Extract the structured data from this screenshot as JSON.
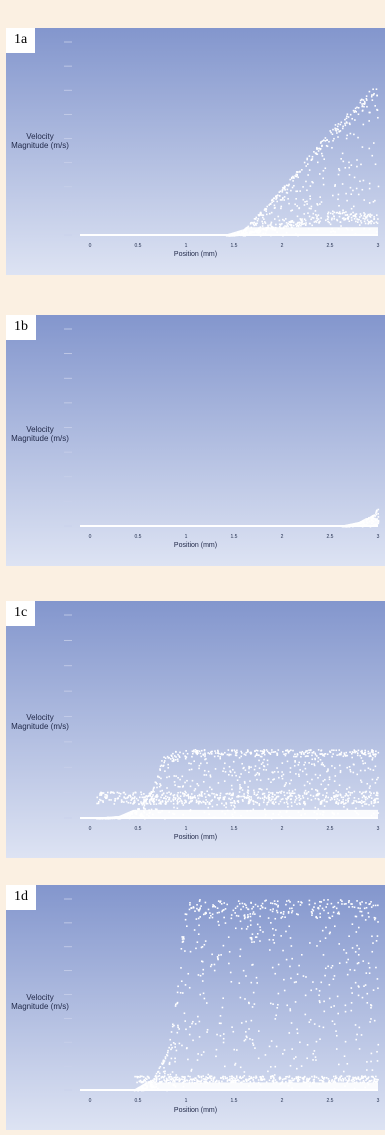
{
  "colors": {
    "bg": "#fbf0e2",
    "plot_top": "#8396cd",
    "plot_bottom": "#dde3f3",
    "marker": "#ffffff"
  },
  "panels": [
    {
      "id": "1a",
      "label": "1a"
    },
    {
      "id": "1b",
      "label": "1b"
    },
    {
      "id": "1c",
      "label": "1c"
    },
    {
      "id": "1d",
      "label": "1d"
    }
  ],
  "chart_data": [
    {
      "type": "scatter",
      "label": "1a",
      "ylabel": "Velocity Magnitude (m/s)",
      "xlabel": "Position (mm)",
      "x_ticks": [
        "0",
        "0.5",
        "1",
        "1.5",
        "2",
        "2.5",
        "3"
      ],
      "xlim": [
        0,
        3
      ],
      "y_tick_count": 9,
      "profile": [
        [
          0,
          0.0
        ],
        [
          1.4,
          0.0
        ],
        [
          1.6,
          0.03
        ],
        [
          2.0,
          0.25
        ],
        [
          2.5,
          0.55
        ],
        [
          2.95,
          0.78
        ],
        [
          3.0,
          0.78
        ]
      ],
      "inner_profile": [
        [
          1.5,
          0.0
        ],
        [
          2.0,
          0.06
        ],
        [
          2.5,
          0.12
        ],
        [
          3.0,
          0.1
        ]
      ]
    },
    {
      "type": "scatter",
      "label": "1b",
      "ylabel": "Velocity Magnitude (m/s)",
      "xlabel": "Position (mm)",
      "x_ticks": [
        "0",
        "0.5",
        "1",
        "1.5",
        "2",
        "2.5",
        "3"
      ],
      "xlim": [
        0,
        3
      ],
      "y_tick_count": 9,
      "profile": [
        [
          0,
          0.0
        ],
        [
          2.6,
          0.0
        ],
        [
          2.8,
          0.02
        ],
        [
          2.95,
          0.06
        ],
        [
          3.0,
          0.1
        ]
      ],
      "inner_profile": []
    },
    {
      "type": "scatter",
      "label": "1c",
      "ylabel": "Velocity Magnitude (m/s)",
      "xlabel": "Position (mm)",
      "x_ticks": [
        "0",
        "0.5",
        "1",
        "1.5",
        "2",
        "2.5",
        "3"
      ],
      "xlim": [
        0,
        3
      ],
      "y_tick_count": 9,
      "profile": [
        [
          0,
          0.0
        ],
        [
          0.3,
          0.01
        ],
        [
          0.5,
          0.05
        ],
        [
          0.65,
          0.15
        ],
        [
          0.75,
          0.3
        ],
        [
          0.85,
          0.33
        ],
        [
          1.0,
          0.34
        ],
        [
          3.0,
          0.34
        ]
      ],
      "inner_profile": [
        [
          0.8,
          0.12
        ],
        [
          3.0,
          0.12
        ]
      ]
    },
    {
      "type": "scatter",
      "label": "1d",
      "ylabel": "Velocity Magnitude (m/s)",
      "xlabel": "Position (mm)",
      "x_ticks": [
        "0",
        "0.5",
        "1",
        "1.5",
        "2",
        "2.5",
        "3"
      ],
      "xlim": [
        0,
        3
      ],
      "y_tick_count": 9,
      "profile": [
        [
          0,
          0.0
        ],
        [
          0.45,
          0.0
        ],
        [
          0.65,
          0.06
        ],
        [
          0.8,
          0.2
        ],
        [
          0.9,
          0.5
        ],
        [
          0.95,
          0.8
        ],
        [
          1.0,
          1.0
        ],
        [
          3.0,
          1.0
        ]
      ],
      "inner_profile": [
        [
          1.0,
          0.07
        ],
        [
          3.0,
          0.07
        ]
      ]
    }
  ]
}
